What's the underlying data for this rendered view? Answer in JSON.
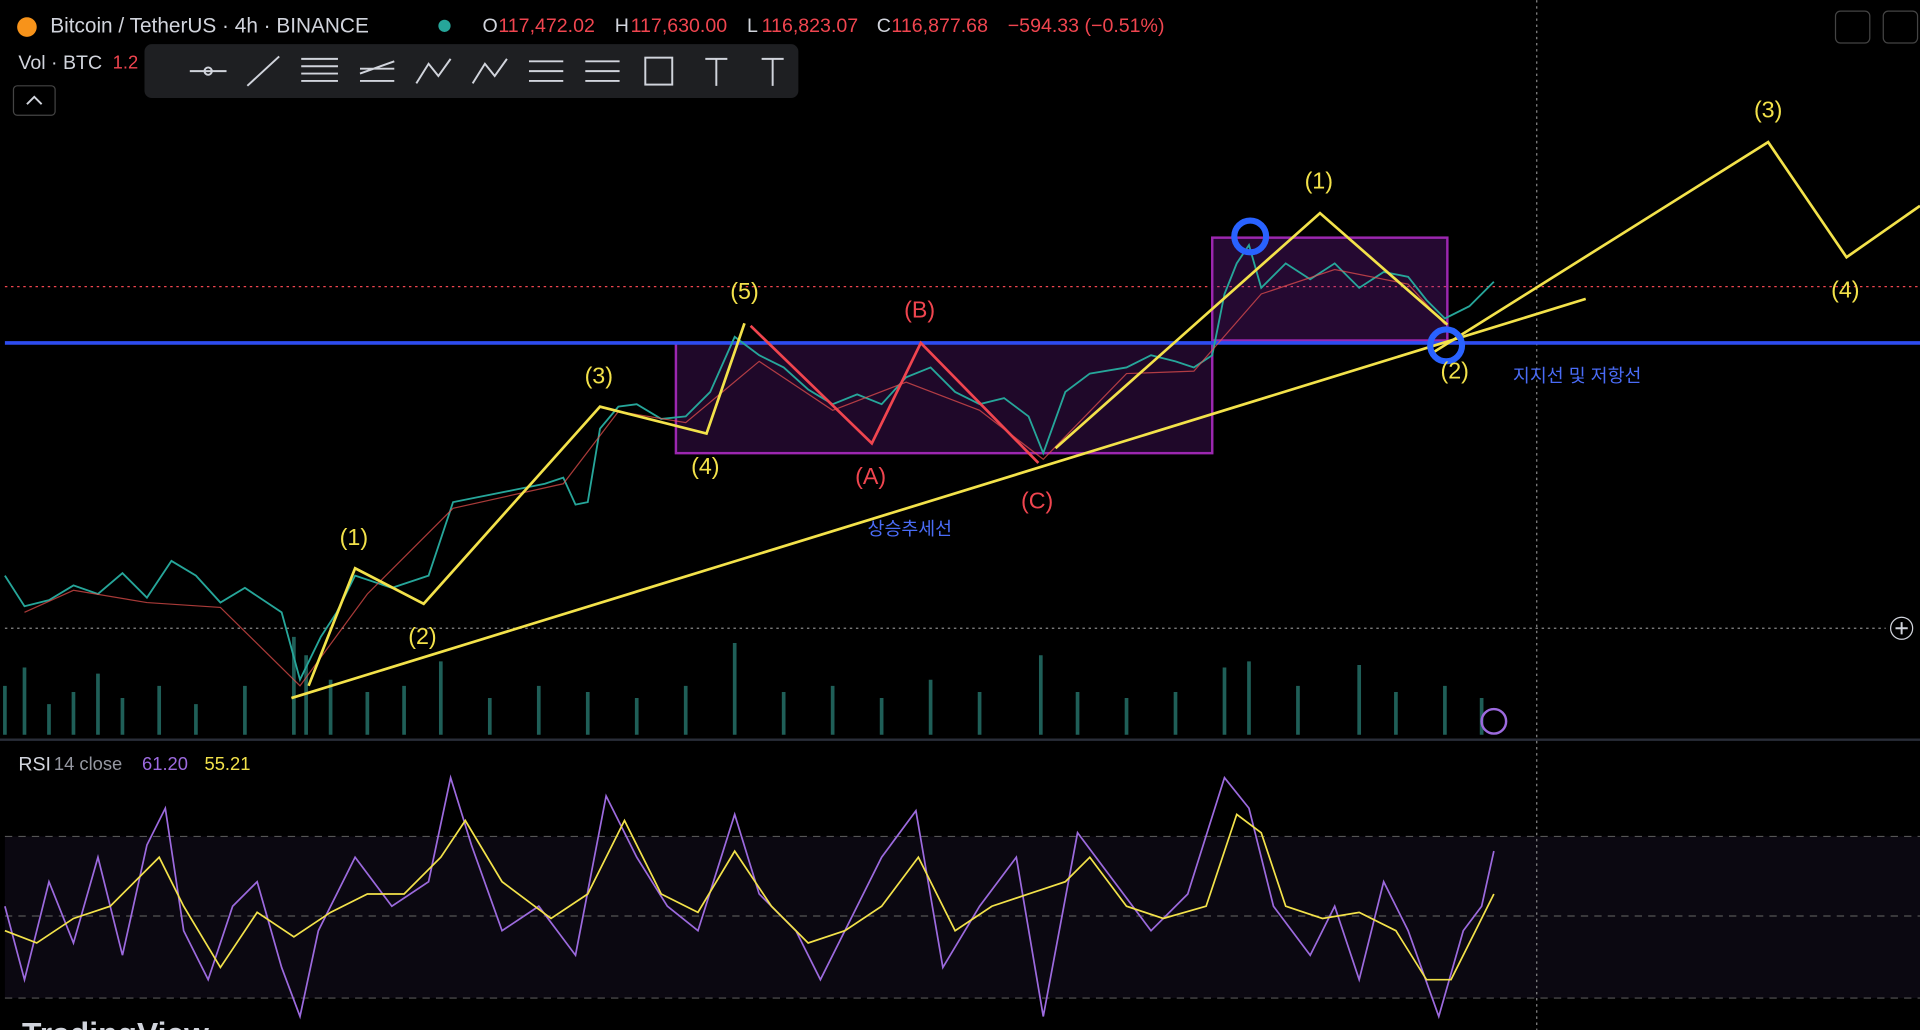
{
  "header": {
    "symbol": "Bitcoin / TetherUS · 4h · BINANCE",
    "open_label": "O",
    "open": "117,472.02",
    "high_label": "H",
    "high": "117,630.00",
    "low_label": "L",
    "low": "116,823.07",
    "close_label": "C",
    "close": "116,877.68",
    "change": "−594.33 (−0.51%)"
  },
  "volume": {
    "label": "Vol · BTC",
    "value": "1.2"
  },
  "annotations": {
    "impulse": [
      "(1)",
      "(2)",
      "(3)",
      "(4)",
      "(5)"
    ],
    "correction": [
      "(A)",
      "(B)",
      "(C)"
    ],
    "current_wave": [
      "(1)",
      "(2)"
    ],
    "projected": [
      "(3)",
      "(4)"
    ],
    "trendline": "상승추세선",
    "support_resistance": "지지선 및 저항선"
  },
  "rsi": {
    "label": "RSI",
    "params": "14 close",
    "value": "61.20",
    "ma_value": "55.21"
  },
  "watermark": "TradingView"
}
